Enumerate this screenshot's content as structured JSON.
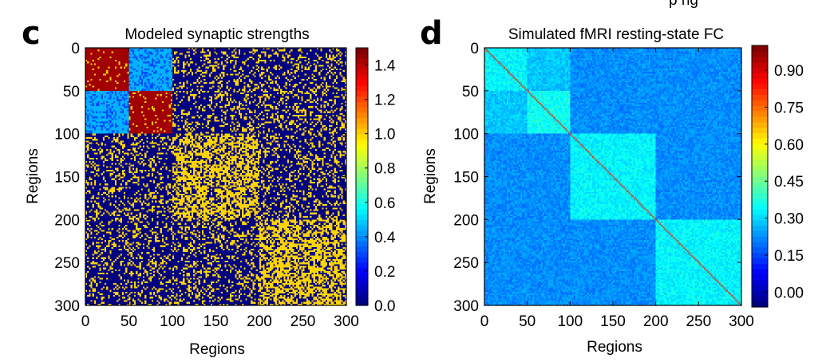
{
  "top_caption_fragment": "p   ng",
  "chart_data": [
    {
      "type": "heatmap",
      "panel_label": "c",
      "title": "Modeled synaptic strengths",
      "xlabel": "Regions",
      "ylabel": "Regions",
      "xlim": [
        0,
        300
      ],
      "ylim": [
        0,
        300
      ],
      "xticks": [
        0,
        50,
        100,
        150,
        200,
        250,
        300
      ],
      "yticks": [
        0,
        50,
        100,
        150,
        200,
        250,
        300
      ],
      "x_tick_labels": [
        "0",
        "50",
        "100",
        "150",
        "200",
        "250",
        "300"
      ],
      "y_tick_labels": [
        "0",
        "50",
        "100",
        "150",
        "200",
        "250",
        "300"
      ],
      "colorbar": {
        "range": [
          0.0,
          1.5
        ],
        "ticks": [
          0.0,
          0.2,
          0.4,
          0.6,
          0.8,
          1.0,
          1.2,
          1.4
        ],
        "tick_labels": [
          "0.0",
          "0.2",
          "0.4",
          "0.6",
          "0.8",
          "1.0",
          "1.2",
          "1.4"
        ]
      },
      "background": {
        "value": 0.0,
        "speckle_value": 1.0,
        "speckle_density": 0.25
      },
      "blocks": [
        {
          "rows": [
            0,
            50
          ],
          "cols": [
            0,
            50
          ],
          "value": 1.45,
          "speckle_value": 1.0,
          "speckle_density": 0.08
        },
        {
          "rows": [
            0,
            50
          ],
          "cols": [
            50,
            100
          ],
          "value": 0.45,
          "speckle_value": 0.3,
          "speckle_density": 0.3
        },
        {
          "rows": [
            50,
            100
          ],
          "cols": [
            0,
            50
          ],
          "value": 0.45,
          "speckle_value": 0.3,
          "speckle_density": 0.3
        },
        {
          "rows": [
            50,
            100
          ],
          "cols": [
            50,
            100
          ],
          "value": 1.45,
          "speckle_value": 1.0,
          "speckle_density": 0.08
        },
        {
          "rows": [
            100,
            200
          ],
          "cols": [
            100,
            200
          ],
          "value": 0.0,
          "speckle_value": 1.0,
          "speckle_density": 0.6
        },
        {
          "rows": [
            200,
            300
          ],
          "cols": [
            200,
            300
          ],
          "value": 0.0,
          "speckle_value": 1.0,
          "speckle_density": 0.6
        }
      ]
    },
    {
      "type": "heatmap",
      "panel_label": "d",
      "title": "Simulated fMRI resting-state FC",
      "xlabel": "Regions",
      "ylabel": "Regions",
      "xlim": [
        0,
        300
      ],
      "ylim": [
        0,
        300
      ],
      "xticks": [
        0,
        50,
        100,
        150,
        200,
        250,
        300
      ],
      "yticks": [
        0,
        50,
        100,
        150,
        200,
        250,
        300
      ],
      "x_tick_labels": [
        "0",
        "50",
        "100",
        "150",
        "200",
        "250",
        "300"
      ],
      "y_tick_labels": [
        "0",
        "50",
        "100",
        "150",
        "200",
        "250",
        "300"
      ],
      "colorbar": {
        "range": [
          -0.06,
          1.0
        ],
        "ticks": [
          0.0,
          0.15,
          0.3,
          0.45,
          0.6,
          0.75,
          0.9
        ],
        "tick_labels": [
          "0.00",
          "0.15",
          "0.30",
          "0.45",
          "0.60",
          "0.75",
          "0.90"
        ]
      },
      "background": {
        "value": 0.22,
        "noise": 0.04
      },
      "blocks": [
        {
          "rows": [
            0,
            100
          ],
          "cols": [
            0,
            100
          ],
          "value": 0.28,
          "noise": 0.04
        },
        {
          "rows": [
            0,
            50
          ],
          "cols": [
            0,
            50
          ],
          "value": 0.33,
          "noise": 0.04
        },
        {
          "rows": [
            50,
            100
          ],
          "cols": [
            50,
            100
          ],
          "value": 0.35,
          "noise": 0.04
        },
        {
          "rows": [
            100,
            200
          ],
          "cols": [
            100,
            200
          ],
          "value": 0.33,
          "noise": 0.04
        },
        {
          "rows": [
            200,
            300
          ],
          "cols": [
            200,
            300
          ],
          "value": 0.33,
          "noise": 0.04
        }
      ],
      "diagonal_value": 1.0
    }
  ]
}
